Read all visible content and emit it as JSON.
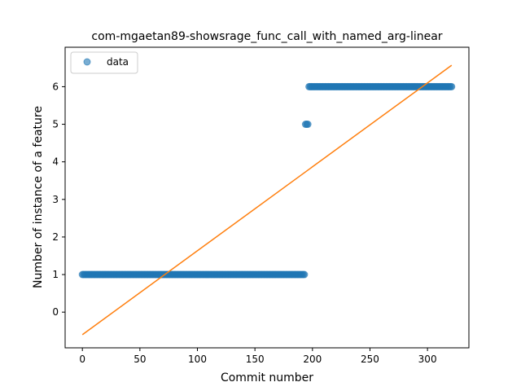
{
  "chart_data": {
    "type": "scatter",
    "title": "com-mgaetan89-showsrage_func_call_with_named_arg-linear",
    "xlabel": "Commit number",
    "ylabel": "Number of instance of a feature",
    "xlim": [
      -15,
      336
    ],
    "ylim": [
      -0.95,
      7.05
    ],
    "xticks": [
      0,
      50,
      100,
      150,
      200,
      250,
      300
    ],
    "yticks": [
      0,
      1,
      2,
      3,
      4,
      5,
      6
    ],
    "grid": false,
    "legend": {
      "placement": "top-left",
      "entries": [
        "data"
      ]
    },
    "series": [
      {
        "name": "data",
        "kind": "scatter",
        "color": "#1f77b4",
        "alpha": 0.6,
        "segments": [
          {
            "x_start": 0,
            "x_end": 193,
            "y": 1
          },
          {
            "x_start": 194,
            "x_end": 196,
            "y": 5
          },
          {
            "x_start": 197,
            "x_end": 321,
            "y": 6
          }
        ]
      },
      {
        "kind": "line",
        "color": "#ff7f0e",
        "x": [
          0,
          321
        ],
        "y": [
          -0.6,
          6.57
        ]
      }
    ]
  }
}
